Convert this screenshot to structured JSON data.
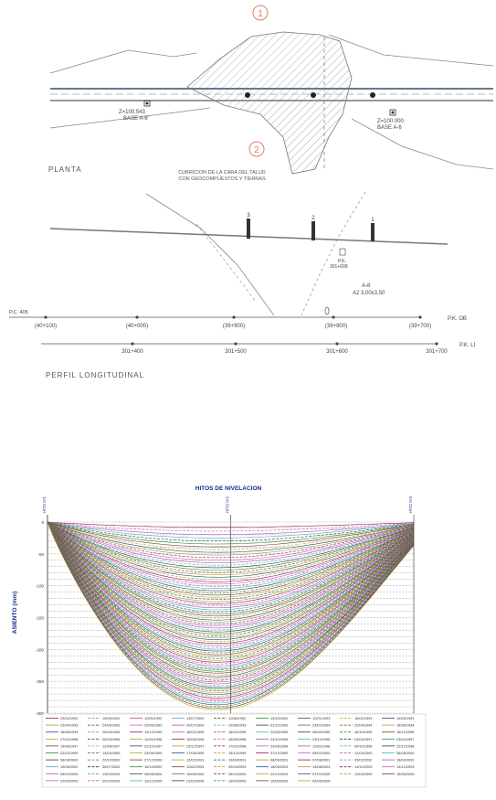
{
  "drawing": {
    "section_1": "1",
    "section_2": "2",
    "base_left_z": "Z=100.543",
    "base_left_name": "BASE A-6'",
    "base_right_z": "Z=100.000",
    "base_right_name": "BASE A-6",
    "planta_label": "PLANTA",
    "cubricion_line1": "CUBRICION DE LA CARA DEL TALUD",
    "cubricion_line2": "CON GEOCOMPUESTOS Y TIERRAS",
    "hito_1": "1",
    "hito_2": "2",
    "hito_3": "3",
    "pk_label": "P.K.",
    "pk_value": "301+608",
    "a_label": "A-8",
    "a2_label": "A2 3,00x3,50",
    "pc_label": "P.C. 405",
    "pk_ob": "P.K. OB",
    "pk_li": "P.K. LI",
    "stations_top": [
      "(40+100)",
      "(40+000)",
      "(39+900)",
      "(39+800)",
      "(39+700)"
    ],
    "stations_bottom": [
      "301+400",
      "301+500",
      "301+600",
      "301+700"
    ],
    "perfil_label": "PERFIL LONGITUDINAL"
  },
  "chart_data": {
    "type": "line",
    "title": "HITOS DE NIVELACION",
    "ylabel": "ASIENTO (mm)",
    "ylim": [
      -300,
      0
    ],
    "yticks": [
      0,
      -50,
      -100,
      -150,
      -200,
      -250,
      -300
    ],
    "grid": true,
    "hitos": [
      "HITO Nº1",
      "HITO Nº2",
      "HITO Nº3"
    ],
    "approx_max_settlement_mm": -295,
    "legend_dates": [
      "23/04/1992",
      "19/05/1992",
      "11/09/1992",
      "13/07/1992",
      "11/08/1992",
      "13/10/1992",
      "12/01/1993",
      "16/02/1993",
      "19/03/1993",
      "23/04/1993",
      "24/05/1993",
      "25/06/1993",
      "20/07/1993",
      "23/08/1993",
      "01/12/1993",
      "23/02/1994",
      "22/04/1994",
      "16/06/1994",
      "18/08/1994",
      "26/09/1994",
      "14/12/1994",
      "16/02/1995",
      "16/04/1995",
      "22/05/1995",
      "06/09/1995",
      "16/10/1995",
      "16/12/1995",
      "27/02/1996",
      "22/03/1996",
      "11/04/1996",
      "19/06/1996",
      "26/09/1996",
      "24/10/1996",
      "23/12/1996",
      "24/02/1997",
      "23/04/1997",
      "19/06/1997",
      "12/08/1997",
      "22/10/1997",
      "23/12/1997",
      "17/02/1998",
      "23/06/1998",
      "11/09/1998",
      "09/10/1998",
      "22/12/1998",
      "22/02/1999",
      "14/04/1999",
      "24/06/1999",
      "17/06/1999",
      "15/10/1999",
      "07/12/1999",
      "09/02/2000",
      "12/04/2000",
      "06/06/2000",
      "08/08/2000",
      "23/10/2000",
      "27/12/2000",
      "12/02/2001",
      "19/04/2001",
      "08/06/2001",
      "07/08/2001",
      "05/02/2002",
      "18/04/2002",
      "12/06/2002",
      "30/07/2002",
      "16/10/2002",
      "11/02/2003",
      "09/04/2003",
      "16/06/2003",
      "13/08/2003",
      "14/10/2003",
      "14/12/2003",
      "06/02/2004",
      "13/04/2004",
      "08/06/2004",
      "19/08/2004",
      "28/10/2004",
      "22/12/2004",
      "07/02/2005",
      "13/04/2005",
      "15/06/2005",
      "22/09/2005",
      "20/10/2005",
      "13/12/2005",
      "21/02/2006",
      "19/04/2006",
      "15/06/2006",
      "09/08/2006"
    ]
  },
  "colors": {
    "line": "#5a6a7a",
    "hatch": "#9a9a9a",
    "road": "#6a7a8a",
    "title_blue": "#1a2a8a",
    "legend_palette": [
      "#8b1a4a",
      "#c060c0",
      "#b050a0",
      "#3ab0c0",
      "#3a3a3a",
      "#2a8a2a",
      "#7a3a2a",
      "#c0a020",
      "#205080",
      "#a0a020"
    ]
  }
}
